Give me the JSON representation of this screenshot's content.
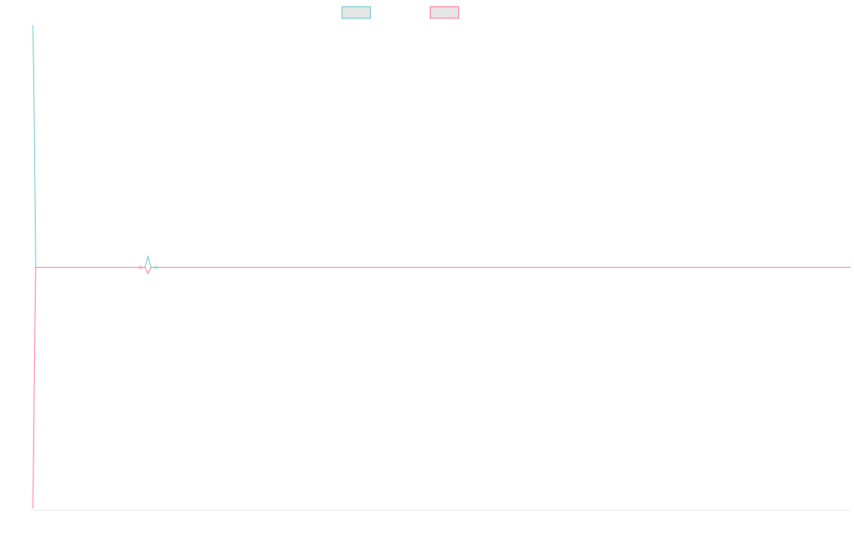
{
  "chart_data": {
    "type": "line",
    "title": "",
    "xlabel": "",
    "ylabel": "",
    "grid": false,
    "legend_position": "top-center",
    "x_points": 1100,
    "ylim": [
      -1,
      1
    ],
    "series": [
      {
        "name": "",
        "color": "#4bc0c0",
        "legend_fill": "#e6e6e6",
        "points": [
          [
            0,
            1.0
          ],
          [
            1,
            0.85
          ],
          [
            2,
            0.6
          ],
          [
            3,
            0.3
          ],
          [
            4,
            0.0
          ],
          [
            145,
            0.0
          ],
          [
            151,
            0.0
          ],
          [
            155,
            0.045
          ],
          [
            159,
            0.0
          ],
          [
            166,
            0.0
          ],
          [
            1100,
            0.0
          ]
        ]
      },
      {
        "name": "",
        "color": "#ff6384",
        "legend_fill": "#e6e6e6",
        "points": [
          [
            0,
            -0.995
          ],
          [
            1,
            -0.8
          ],
          [
            2,
            -0.5
          ],
          [
            3,
            -0.2
          ],
          [
            4,
            0.0
          ],
          [
            145,
            0.0
          ],
          [
            151,
            0.0
          ],
          [
            155,
            -0.025
          ],
          [
            159,
            0.0
          ],
          [
            166,
            0.0
          ],
          [
            1100,
            0.0
          ]
        ]
      }
    ]
  }
}
